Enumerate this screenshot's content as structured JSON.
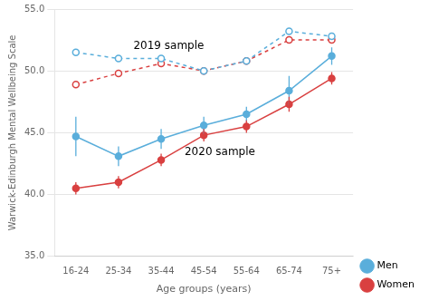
{
  "chart_data": {
    "type": "line",
    "xlabel": "Age groups (years)",
    "ylabel": "Warwick-Edinburgh Mental Wellbeing Scale",
    "categories": [
      "16-24",
      "25-34",
      "35-44",
      "45-54",
      "55-64",
      "65-74",
      "75+"
    ],
    "series": [
      {
        "name": "Men",
        "color": "#5aaedb",
        "line_style": "dotted",
        "marker": "open",
        "values": [
          51.5,
          51.0,
          51.0,
          50.0,
          50.8,
          53.2,
          52.8
        ]
      },
      {
        "name": "Women",
        "color": "#d94040",
        "line_style": "dotted",
        "marker": "open",
        "values": [
          48.9,
          49.8,
          50.6,
          50.0,
          50.8,
          52.5,
          52.5
        ]
      },
      {
        "name": "Men",
        "color": "#5aaedb",
        "line_style": "solid",
        "marker": "filled",
        "values": [
          44.7,
          43.1,
          44.5,
          45.6,
          46.5,
          48.4,
          51.2
        ],
        "errors": [
          1.6,
          0.8,
          0.8,
          0.7,
          0.6,
          1.2,
          0.7
        ]
      },
      {
        "name": "Women",
        "color": "#d94040",
        "line_style": "solid",
        "marker": "filled",
        "values": [
          40.5,
          41.0,
          42.8,
          44.8,
          45.5,
          47.3,
          49.4
        ],
        "errors": [
          0.5,
          0.5,
          0.5,
          0.5,
          0.5,
          0.6,
          0.5
        ]
      }
    ],
    "ylim": [
      35.0,
      55.0
    ],
    "yticks": [
      {
        "value": 35.0,
        "label": "35.0"
      },
      {
        "value": 40.0,
        "label": "40.0"
      },
      {
        "value": 45.0,
        "label": "45.0"
      },
      {
        "value": 50.0,
        "label": "50.0"
      },
      {
        "value": 55.0,
        "label": "55.0"
      }
    ],
    "grid": "y",
    "legend": "lower right",
    "annotations": [
      {
        "text": "2019 sample",
        "x": 1.35,
        "y": 51.8
      },
      {
        "text": "2020 sample",
        "x": 2.55,
        "y": 43.2
      }
    ]
  }
}
